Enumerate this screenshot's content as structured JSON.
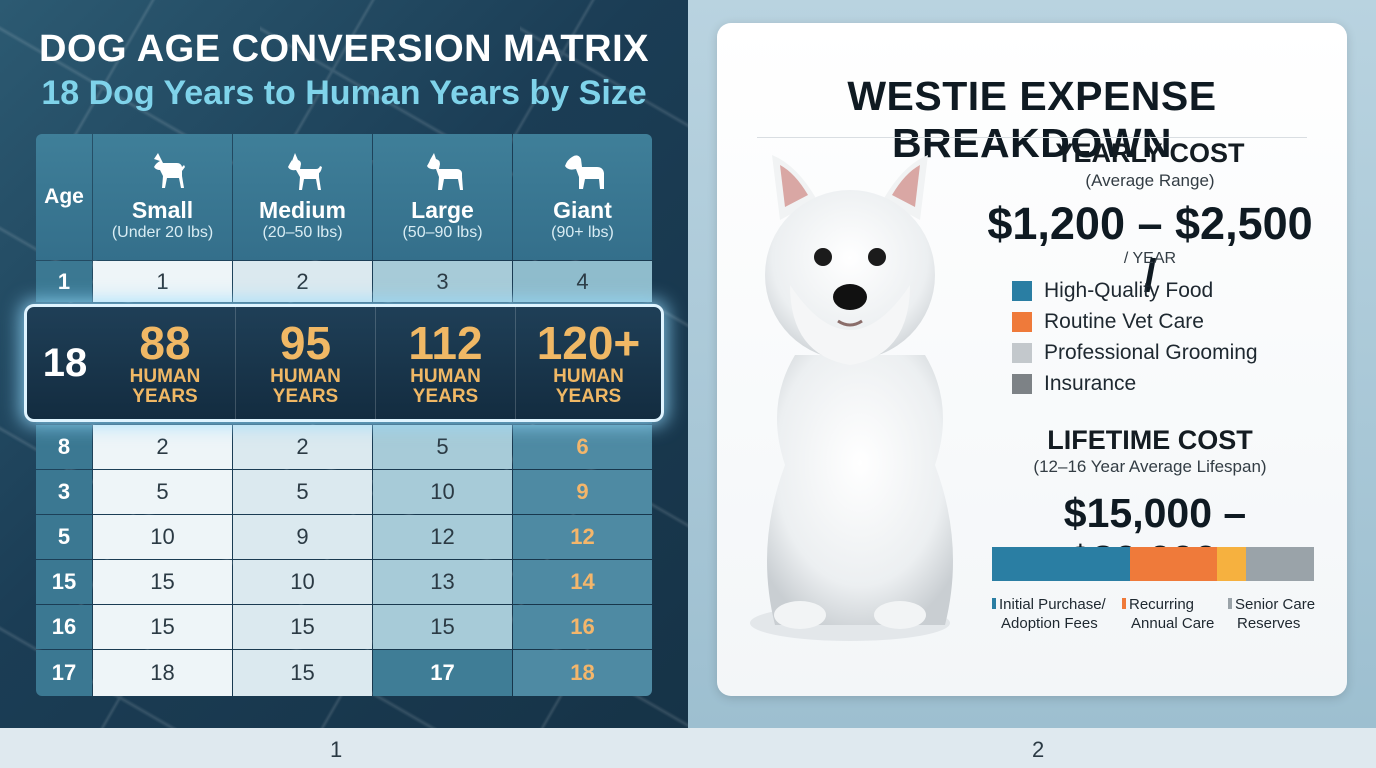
{
  "left": {
    "title": "DOG AGE CONVERSION MATRIX",
    "subtitle": "18 Dog Years to Human Years by Size",
    "age_header": "Age",
    "sizes": [
      {
        "name": "Small",
        "range": "(Under 20 lbs)"
      },
      {
        "name": "Medium",
        "range": "(20–50 lbs)"
      },
      {
        "name": "Large",
        "range": "(50–90 lbs)"
      },
      {
        "name": "Giant",
        "range": "(90+ lbs)"
      }
    ],
    "rows": [
      {
        "age": "1",
        "values": [
          "1",
          "2",
          "3",
          "4"
        ]
      },
      {
        "age": "8",
        "values": [
          "2",
          "2",
          "5",
          "6"
        ]
      },
      {
        "age": "3",
        "values": [
          "5",
          "5",
          "10",
          "9"
        ]
      },
      {
        "age": "5",
        "values": [
          "10",
          "9",
          "12",
          "12"
        ]
      },
      {
        "age": "15",
        "values": [
          "15",
          "10",
          "13",
          "14"
        ]
      },
      {
        "age": "16",
        "values": [
          "15",
          "15",
          "15",
          "16"
        ]
      },
      {
        "age": "17",
        "values": [
          "18",
          "15",
          "17",
          "18"
        ]
      }
    ],
    "highlight": {
      "age": "18",
      "values": [
        "88",
        "95",
        "112",
        "120+"
      ],
      "unit_line1": "HUMAN",
      "unit_line2": "YEARS"
    }
  },
  "right": {
    "title": "WESTIE EXPENSE BREAKDOWN",
    "yearly": {
      "heading": "YEARLY COST",
      "subheading": "(Average Range)",
      "amount": "$1,200 – $2,500 /",
      "per": "/ YEAR",
      "legend": [
        {
          "label": "High-Quality Food",
          "color": "#2a7ea3"
        },
        {
          "label": "Routine Vet Care",
          "color": "#ef7a3a"
        },
        {
          "label": "Professional Grooming",
          "color": "#c3c8cc"
        },
        {
          "label": "Insurance",
          "color": "#7d8286"
        }
      ]
    },
    "lifetime": {
      "heading": "LIFETIME COST",
      "subheading": "(12–16 Year Average Lifespan)",
      "amount": "$15,000 – $30,000+",
      "bar_segments": [
        {
          "share": 0.43,
          "color": "#2a7ea3"
        },
        {
          "share": 0.27,
          "color": "#ef7a3a"
        },
        {
          "share": 0.09,
          "color": "#f6b13f"
        },
        {
          "share": 0.21,
          "color": "#9aa3a9"
        }
      ],
      "bar_legend": [
        {
          "line1": "Initial Purchase/",
          "line2": "Adoption Fees",
          "color": "#2a7ea3"
        },
        {
          "line1": "Recurring",
          "line2": "Annual Care",
          "color": "#ef7a3a"
        },
        {
          "line1": "Senior Care",
          "line2": "Reserves",
          "color": "#9aa3a9"
        }
      ]
    }
  },
  "footer": {
    "page_left": "1",
    "page_right": "2"
  }
}
